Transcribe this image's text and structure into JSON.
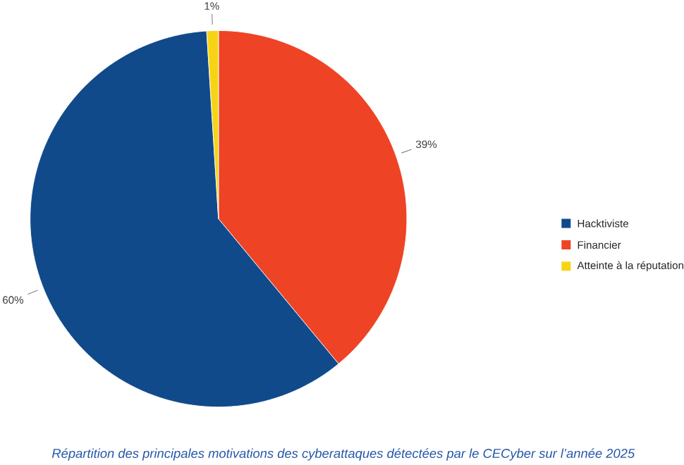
{
  "chart_data": {
    "type": "pie",
    "title": "Répartition des principales motivations des cyberattaques détectées par le CECyber sur l’année 2025",
    "categories": [
      "Hacktiviste",
      "Financier",
      "Atteinte à la réputation"
    ],
    "values": [
      60,
      39,
      1
    ],
    "colors": [
      "#114a8b",
      "#ee4325",
      "#f6d415"
    ],
    "value_labels": [
      "60%",
      "39%",
      "1%"
    ],
    "legend": "right"
  }
}
